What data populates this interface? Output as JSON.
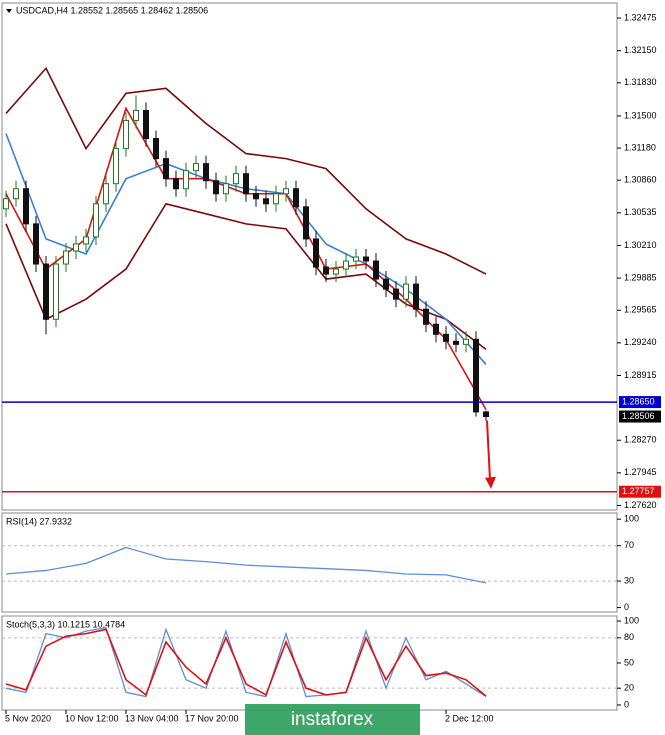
{
  "chart_data": [
    {
      "type": "candlestick",
      "title": "USDCAD,H4  1.28552 1.28565 1.28462 1.28506",
      "up_color": "#1f7a1f",
      "down_color": "#111111",
      "ylim": [
        1.27575,
        1.32625
      ],
      "yticks": [
        {
          "value": 1.32475,
          "label": "1.32475"
        },
        {
          "value": 1.3215,
          "label": "1.32150"
        },
        {
          "value": 1.3183,
          "label": "1.31830"
        },
        {
          "value": 1.315,
          "label": "1.31500"
        },
        {
          "value": 1.3118,
          "label": "1.31180"
        },
        {
          "value": 1.3086,
          "label": "1.30860"
        },
        {
          "value": 1.30535,
          "label": "1.30535"
        },
        {
          "value": 1.3021,
          "label": "1.30210"
        },
        {
          "value": 1.29885,
          "label": "1.29885"
        },
        {
          "value": 1.29565,
          "label": "1.29565"
        },
        {
          "value": 1.2924,
          "label": "1.29240"
        },
        {
          "value": 1.28915,
          "label": "1.28915"
        },
        {
          "value": 1.2827,
          "label": "1.28270"
        },
        {
          "value": 1.27945,
          "label": "1.27945"
        },
        {
          "value": 1.2762,
          "label": "1.27620"
        }
      ],
      "candles": [
        [
          1.30575,
          1.30755,
          1.30495,
          1.30675
        ],
        [
          1.30675,
          1.30855,
          1.30595,
          1.30775
        ],
        [
          1.30775,
          1.30855,
          1.30345,
          1.30425
        ],
        [
          1.30425,
          1.30505,
          1.29945,
          1.30025
        ],
        [
          1.30025,
          1.30105,
          1.29325,
          1.29475
        ],
        [
          1.29475,
          1.30105,
          1.29395,
          1.30025
        ],
        [
          1.30025,
          1.30235,
          1.29945,
          1.30155
        ],
        [
          1.30155,
          1.30305,
          1.30075,
          1.30225
        ],
        [
          1.30225,
          1.30375,
          1.30145,
          1.30295
        ],
        [
          1.30295,
          1.30705,
          1.30215,
          1.30625
        ],
        [
          1.30625,
          1.30905,
          1.30545,
          1.30825
        ],
        [
          1.30825,
          1.31255,
          1.30745,
          1.31175
        ],
        [
          1.31175,
          1.31535,
          1.31095,
          1.31455
        ],
        [
          1.31455,
          1.31705,
          1.31375,
          1.31555
        ],
        [
          1.31555,
          1.31635,
          1.31195,
          1.31275
        ],
        [
          1.31275,
          1.31355,
          1.30995,
          1.31075
        ],
        [
          1.31075,
          1.31155,
          1.30795,
          1.30875
        ],
        [
          1.30875,
          1.30955,
          1.30695,
          1.30775
        ],
        [
          1.30775,
          1.31035,
          1.30695,
          1.30955
        ],
        [
          1.30955,
          1.31105,
          1.30875,
          1.31025
        ],
        [
          1.31025,
          1.31105,
          1.30775,
          1.30855
        ],
        [
          1.30855,
          1.30935,
          1.30645,
          1.30725
        ],
        [
          1.30725,
          1.30905,
          1.30645,
          1.30825
        ],
        [
          1.30825,
          1.31005,
          1.30745,
          1.30925
        ],
        [
          1.30925,
          1.31005,
          1.30645,
          1.30725
        ],
        [
          1.30725,
          1.30805,
          1.30595,
          1.30675
        ],
        [
          1.30675,
          1.30755,
          1.30545,
          1.30625
        ],
        [
          1.30625,
          1.30805,
          1.30545,
          1.30725
        ],
        [
          1.30725,
          1.30855,
          1.30645,
          1.30775
        ],
        [
          1.30775,
          1.30855,
          1.30515,
          1.30595
        ],
        [
          1.30595,
          1.30675,
          1.30195,
          1.30275
        ],
        [
          1.30275,
          1.30355,
          1.29915,
          1.29995
        ],
        [
          1.29995,
          1.30075,
          1.29845,
          1.29925
        ],
        [
          1.29925,
          1.30055,
          1.29845,
          1.29975
        ],
        [
          1.29975,
          1.30135,
          1.29895,
          1.30055
        ],
        [
          1.30055,
          1.30175,
          1.29975,
          1.30095
        ],
        [
          1.30095,
          1.30175,
          1.29975,
          1.30055
        ],
        [
          1.30055,
          1.30135,
          1.29795,
          1.29875
        ],
        [
          1.29875,
          1.29955,
          1.29695,
          1.29775
        ],
        [
          1.29775,
          1.29855,
          1.29595,
          1.29675
        ],
        [
          1.29675,
          1.29905,
          1.29595,
          1.29825
        ],
        [
          1.29825,
          1.29905,
          1.29495,
          1.29575
        ],
        [
          1.29575,
          1.29655,
          1.29345,
          1.29425
        ],
        [
          1.29425,
          1.29505,
          1.29245,
          1.29325
        ],
        [
          1.29325,
          1.29405,
          1.29175,
          1.29255
        ],
        [
          1.29255,
          1.29335,
          1.29145,
          1.29225
        ],
        [
          1.29225,
          1.29355,
          1.29145,
          1.29275
        ],
        [
          1.29275,
          1.29355,
          1.28505,
          1.28552
        ],
        [
          1.28552,
          1.28565,
          1.28462,
          1.28506
        ]
      ],
      "line_x": [
        0,
        4,
        8,
        12,
        16,
        20,
        24,
        28,
        32,
        36,
        40,
        44,
        48
      ],
      "series": [
        {
          "color": "#7a0a0a",
          "values": [
            1.31525,
            1.31975,
            1.31175,
            1.31725,
            1.31775,
            1.31425,
            1.31125,
            1.31075,
            1.30975,
            1.30575,
            1.30275,
            1.30125,
            1.29925
          ]
        },
        {
          "color": "#7a0a0a",
          "values": [
            1.30425,
            1.29475,
            1.29675,
            1.29975,
            1.30625,
            1.30525,
            1.30425,
            1.30375,
            1.29875,
            1.29925,
            1.29625,
            1.29475,
            1.29175
          ]
        },
        {
          "color": "#3b7fd6",
          "values": [
            1.31325,
            1.30275,
            1.30125,
            1.30875,
            1.31025,
            1.30875,
            1.30775,
            1.30725,
            1.30225,
            1.30025,
            1.29775,
            1.29475,
            1.29025
          ]
        },
        {
          "color": "#e01010",
          "values": [
            1.30725,
            1.29975,
            1.30275,
            1.31575,
            1.30875,
            1.30875,
            1.30725,
            1.30725,
            1.29975,
            1.30025,
            1.29675,
            1.29275,
            1.28575
          ]
        }
      ],
      "levels": [
        {
          "value": 1.2865,
          "label": "1.28650",
          "color": "#0000cc"
        },
        {
          "value": 1.27757,
          "label": "1.27757",
          "color": "#e01010"
        }
      ],
      "price_label": {
        "value": 1.28506,
        "label": "1.28506"
      },
      "x_labels": [
        {
          "index": 0,
          "label": "5 Nov 2020"
        },
        {
          "index": 6,
          "label": "10 Nov 12:00"
        },
        {
          "index": 12,
          "label": "13 Nov 04:00"
        },
        {
          "index": 18,
          "label": "17 Nov 20:00"
        },
        {
          "index": 44,
          "label": "2 Dec 12:00"
        }
      ],
      "watermark": "instaforex"
    },
    {
      "type": "line",
      "title": "RSI(14) 27.9332",
      "ylim": [
        -5,
        107
      ],
      "yticks": [
        100,
        70,
        30,
        0
      ],
      "levels": [
        70,
        30
      ],
      "x": [
        0,
        4,
        8,
        12,
        16,
        20,
        24,
        28,
        32,
        36,
        40,
        44,
        48
      ],
      "series": [
        {
          "color": "#5b8fd6",
          "values": [
            38,
            42,
            50,
            68,
            55,
            52,
            48,
            46,
            44,
            42,
            38,
            37,
            27.9332
          ]
        }
      ]
    },
    {
      "type": "line",
      "title": "Stoch(5,3,3) 10.1215 10.4784",
      "ylim": [
        -6,
        106
      ],
      "yticks": [
        100,
        80,
        50,
        20,
        0
      ],
      "levels": [
        80,
        20
      ],
      "x": [
        0,
        2,
        4,
        6,
        8,
        10,
        12,
        14,
        16,
        18,
        20,
        22,
        24,
        26,
        28,
        30,
        32,
        34,
        36,
        38,
        40,
        42,
        44,
        46,
        48
      ],
      "series": [
        {
          "color": "#5b8fd6",
          "values": [
            20,
            15,
            85,
            80,
            88,
            92,
            15,
            10,
            90,
            30,
            20,
            88,
            15,
            10,
            85,
            10,
            12,
            15,
            88,
            20,
            80,
            30,
            40,
            25,
            10.1215
          ]
        },
        {
          "color": "#e01010",
          "values": [
            25,
            18,
            70,
            82,
            85,
            90,
            30,
            12,
            75,
            45,
            25,
            80,
            25,
            12,
            75,
            20,
            12,
            15,
            80,
            30,
            70,
            35,
            38,
            30,
            10.4784
          ]
        }
      ]
    }
  ]
}
